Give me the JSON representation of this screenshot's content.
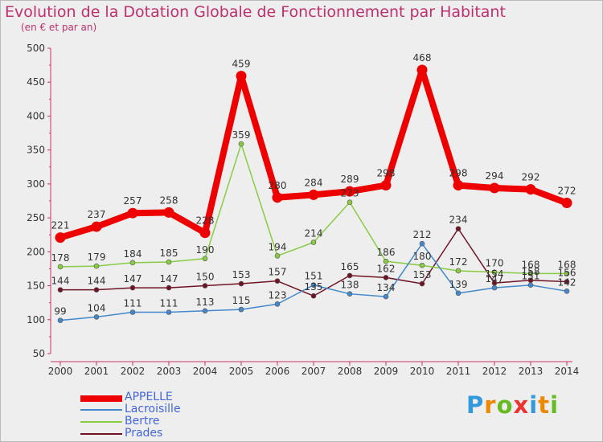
{
  "title": "Evolution de la Dotation Globale de Fonctionnement par Habitant",
  "subtitle": "(en € et par an)",
  "logo": "Proxiti",
  "chart_data": {
    "type": "line",
    "x": [
      "2000",
      "2001",
      "2002",
      "2003",
      "2004",
      "2005",
      "2006",
      "2007",
      "2008",
      "2009",
      "2010",
      "2011",
      "2012",
      "2013",
      "2014"
    ],
    "ylim": [
      50,
      500
    ],
    "yticks": [
      50,
      100,
      150,
      200,
      250,
      300,
      350,
      400,
      450,
      500
    ],
    "grid": false,
    "legend_position": "bottom-left",
    "series": [
      {
        "name": "Prades",
        "color": "#701424",
        "values": [
          144,
          144,
          147,
          147,
          150,
          153,
          157,
          135,
          165,
          162,
          153,
          234,
          154,
          158,
          156
        ],
        "labels": [
          "144",
          "144",
          "147",
          "147",
          "150",
          "153",
          "157",
          "135",
          "165",
          "162",
          "153",
          "234",
          "154",
          "158",
          "156"
        ]
      },
      {
        "name": "Bertre",
        "color": "#88cc44",
        "values": [
          178,
          179,
          184,
          185,
          190,
          359,
          194,
          214,
          273,
          186,
          180,
          172,
          170,
          168,
          168
        ],
        "labels": [
          "178",
          "179",
          "184",
          "185",
          "190",
          "359",
          "194",
          "214",
          "273",
          "186",
          "180",
          "172",
          "170",
          "168",
          "168"
        ]
      },
      {
        "name": "Lacroisille",
        "color": "#4488cc",
        "values": [
          99,
          104,
          111,
          111,
          113,
          115,
          123,
          151,
          138,
          134,
          212,
          139,
          147,
          151,
          142
        ],
        "labels": [
          "99",
          "104",
          "111",
          "111",
          "113",
          "115",
          "123",
          "151",
          "138",
          "134",
          "212",
          "139",
          "147",
          "151",
          "142"
        ]
      },
      {
        "name": "APPELLE",
        "color": "#ee0000",
        "values": [
          221,
          237,
          257,
          258,
          228,
          459,
          280,
          284,
          289,
          298,
          468,
          298,
          294,
          292,
          272
        ],
        "labels": [
          "221",
          "237",
          "257",
          "258",
          "228",
          "459",
          "280",
          "284",
          "289",
          "298",
          "468",
          "298",
          "294",
          "292",
          "272"
        ]
      }
    ]
  }
}
